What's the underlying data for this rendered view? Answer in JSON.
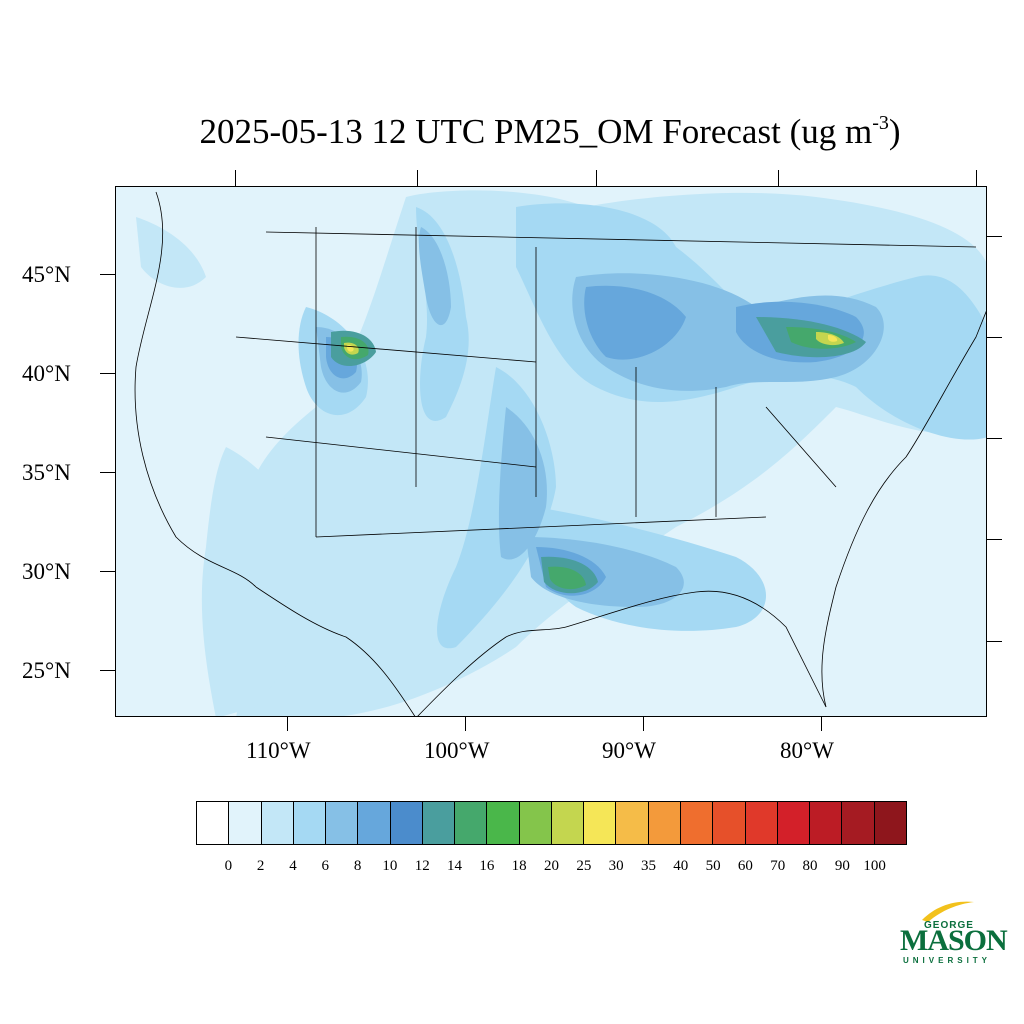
{
  "title": {
    "main": "2025-05-13 12 UTC PM25_OM Forecast (ug m",
    "superscript": "-3",
    "close": ")"
  },
  "map": {
    "region": "Contiguous United States",
    "variable": "PM25_OM",
    "lat_labels": [
      "45°N",
      "40°N",
      "35°N",
      "30°N",
      "25°N"
    ],
    "lon_labels": [
      "110°W",
      "100°W",
      "90°W",
      "80°W"
    ],
    "hotspots": [
      {
        "area": "Wyoming",
        "level": "25-30"
      },
      {
        "area": "Southeast Texas / Louisiana",
        "level": "16-20"
      },
      {
        "area": "Southern Ontario / New York",
        "level": "20-30"
      }
    ]
  },
  "colorbar": {
    "labels": [
      "0",
      "2",
      "4",
      "6",
      "8",
      "10",
      "12",
      "14",
      "16",
      "18",
      "20",
      "25",
      "30",
      "35",
      "40",
      "50",
      "60",
      "70",
      "80",
      "90",
      "100"
    ],
    "colors": [
      "#ffffff",
      "#e1f3fb",
      "#c3e7f7",
      "#a5d9f3",
      "#86c0e6",
      "#66a7dc",
      "#4b8ccc",
      "#4a9e9e",
      "#45a86c",
      "#4ab74a",
      "#84c54b",
      "#c4d64f",
      "#f5e657",
      "#f5bc48",
      "#f39a3b",
      "#ef6e2e",
      "#e6502a",
      "#e0392a",
      "#d32029",
      "#bc1c25",
      "#a51b22",
      "#8e161c"
    ]
  },
  "logo": {
    "top": "GEORGE",
    "middle": "MASON",
    "bottom": "UNIVERSITY"
  }
}
